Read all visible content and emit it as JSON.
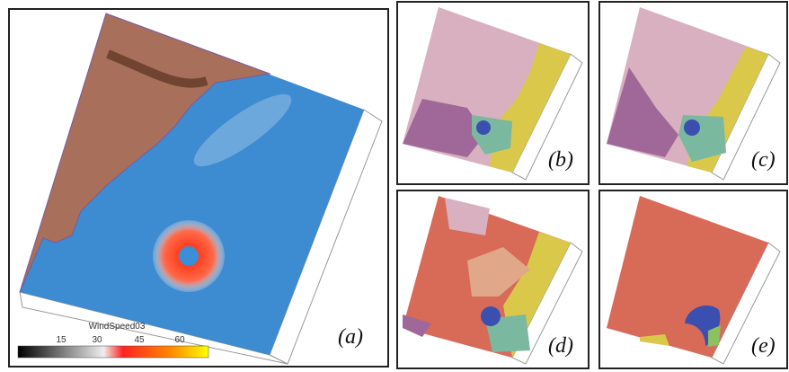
{
  "panels": {
    "a": "(a)",
    "b": "(b)",
    "c": "(c)",
    "d": "(d)",
    "e": "(e)"
  },
  "colorbar": {
    "title": "WindSpeed03",
    "ticks": [
      "15",
      "30",
      "45",
      "60"
    ]
  }
}
